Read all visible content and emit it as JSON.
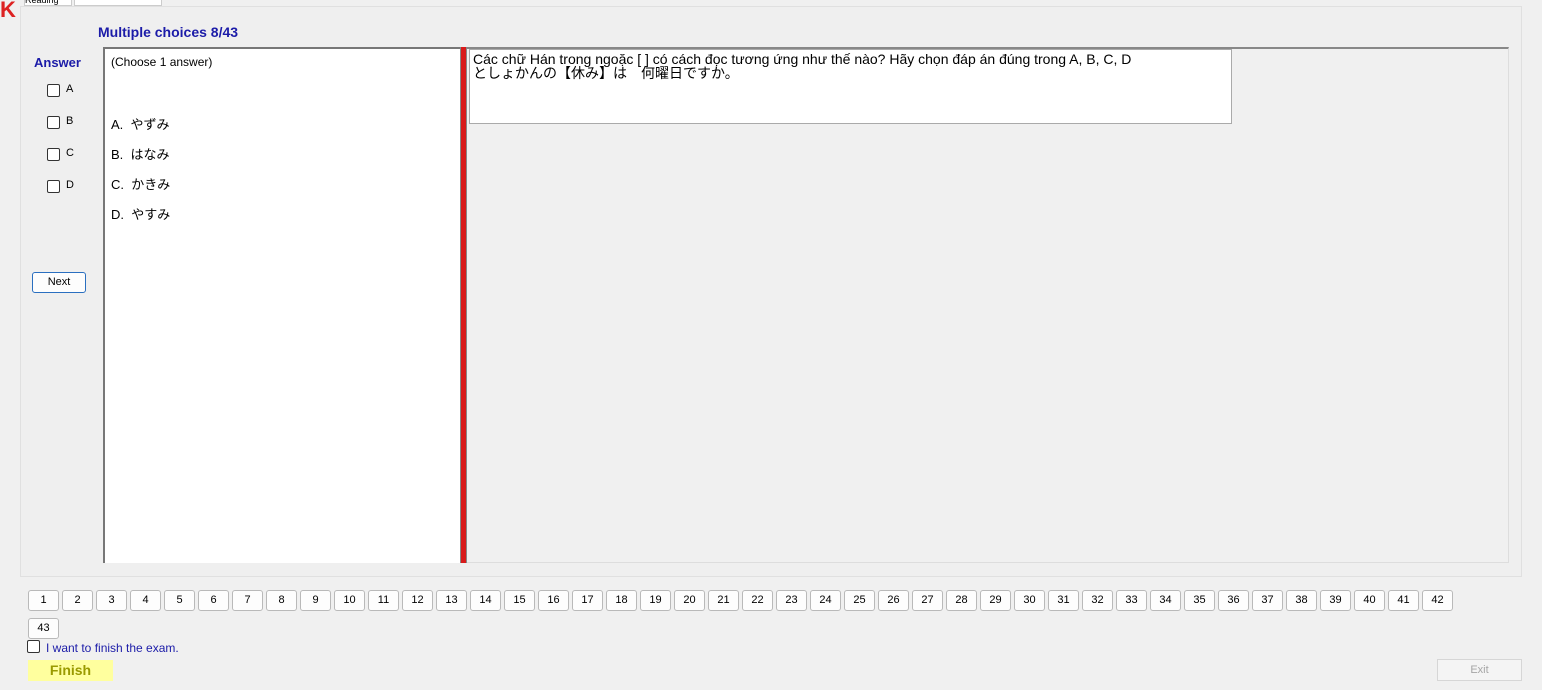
{
  "tabs": [
    "Reading"
  ],
  "section_title": "Multiple choices 8/43",
  "answer_label": "Answer",
  "answer_options": [
    "A",
    "B",
    "C",
    "D"
  ],
  "next_button": "Next",
  "instruction": "(Choose 1 answer)",
  "choices": [
    "A.  やずみ",
    "B.  はなみ",
    "C.  かきみ",
    "D.  やすみ"
  ],
  "question": {
    "prompt": "Các chữ Hán trong ngoặc [    ]  có cách đọc tương ứng như thế nào? Hãy chọn đáp án đúng trong A, B, C, D",
    "text": "としょかんの【休み】は　何曜日ですか。"
  },
  "question_numbers": [
    1,
    2,
    3,
    4,
    5,
    6,
    7,
    8,
    9,
    10,
    11,
    12,
    13,
    14,
    15,
    16,
    17,
    18,
    19,
    20,
    21,
    22,
    23,
    24,
    25,
    26,
    27,
    28,
    29,
    30,
    31,
    32,
    33,
    34,
    35,
    36,
    37,
    38,
    39,
    40,
    41,
    42,
    43
  ],
  "finish_checkbox_label": "I want to finish the exam.",
  "finish_button": "Finish",
  "exit_button": "Exit"
}
